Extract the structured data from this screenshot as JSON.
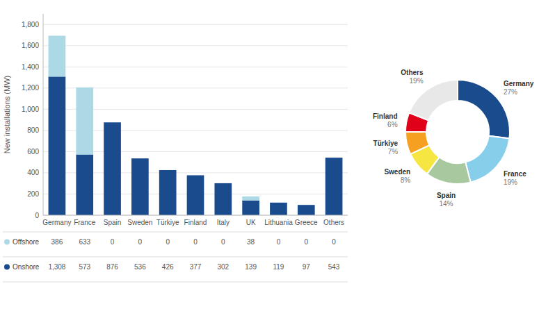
{
  "chart_data": [
    {
      "type": "bar",
      "stacked": true,
      "grid": true,
      "data_labels": true,
      "y_label": "New installations (MW)",
      "categories": [
        "Germany",
        "France",
        "Spain",
        "Sweden",
        "Türkiye",
        "Finland",
        "Italy",
        "UK",
        "Lithuania",
        "Greece",
        "Others"
      ],
      "series": [
        {
          "name": "Onshore",
          "color": "#1a4b8c",
          "values": [
            1308,
            573,
            876,
            536,
            426,
            377,
            302,
            139,
            119,
            97,
            543
          ],
          "value_labels": [
            "1,308",
            "573",
            "876",
            "536",
            "426",
            "377",
            "302",
            "139",
            "119",
            "97",
            "543"
          ]
        },
        {
          "name": "Offshore",
          "color": "#add8e6",
          "values": [
            386,
            633,
            0,
            0,
            0,
            0,
            0,
            38,
            0,
            0,
            0
          ]
        }
      ],
      "ylim": [
        0,
        1900
      ],
      "yticks": [
        0,
        200,
        400,
        600,
        800,
        {
          "value": 1000,
          "label": "1,000"
        },
        {
          "value": 1200,
          "label": "1,200"
        },
        {
          "value": 1400,
          "label": "1,400"
        },
        {
          "value": 1600,
          "label": "1,600"
        },
        {
          "value": 1800,
          "label": "1,800"
        }
      ]
    },
    {
      "type": "pie",
      "data_labels": true,
      "categories": [
        "Germany",
        "France",
        "Spain",
        "Sweden",
        "Türkiye",
        "Finland",
        "Others"
      ],
      "values": [
        27,
        19,
        14,
        8,
        7,
        6,
        19
      ],
      "value_labels": [
        "27%",
        "19%",
        "14%",
        "8%",
        "7%",
        "6%",
        "19%"
      ],
      "colors": [
        "#1a4b8c",
        "#87ceeb",
        "#a8c8a0",
        "#f5e642",
        "#f5a020",
        "#e0001a",
        "#e8e8e8"
      ]
    }
  ]
}
